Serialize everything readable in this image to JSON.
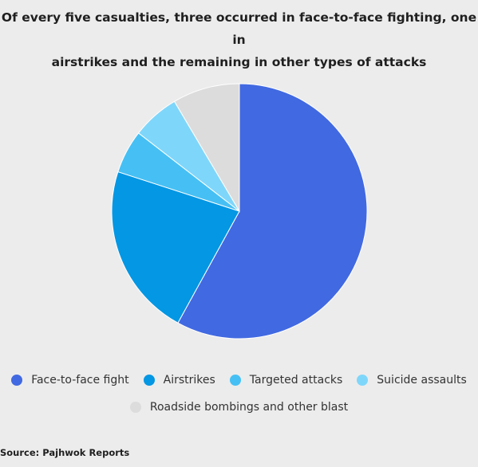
{
  "title_line1": "Of every five casualties, three occurred in face-to-face fighting, one in",
  "title_line2": "airstrikes and the remaining in other types of attacks",
  "source": "Source: Pajhwok Reports",
  "chart_data": {
    "type": "pie",
    "title": "Of every five casualties, three occurred in face-to-face fighting, one in airstrikes and the remaining in other types of attacks",
    "legend_position": "bottom",
    "slices": [
      {
        "label": "Face-to-face fight",
        "value": 58,
        "color": "#4169e1"
      },
      {
        "label": "Airstrikes",
        "value": 22,
        "color": "#0497e3"
      },
      {
        "label": "Targeted attacks",
        "value": 5.5,
        "color": "#46c0f4"
      },
      {
        "label": "Suicide assaults",
        "value": 6,
        "color": "#7fd6fb"
      },
      {
        "label": "Roadside bombings and other blast",
        "value": 8.5,
        "color": "#dcdcdc"
      }
    ]
  }
}
